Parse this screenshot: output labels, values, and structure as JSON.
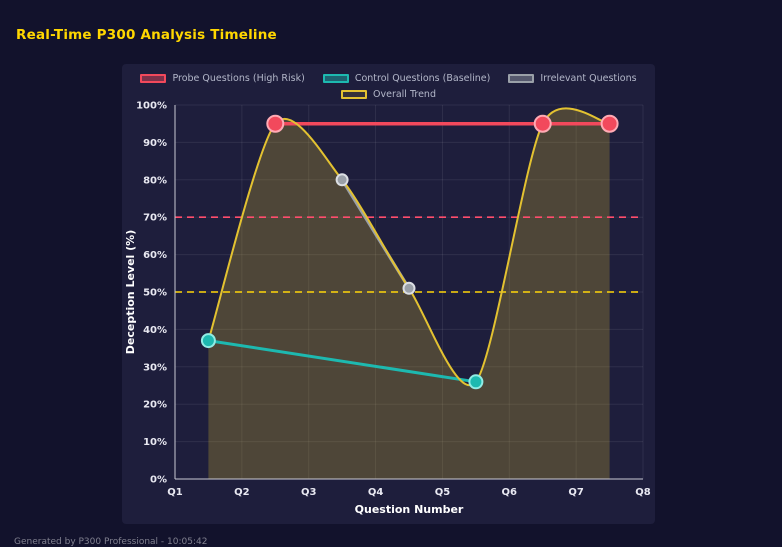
{
  "header": {
    "title": "Real-Time P300 Analysis Timeline"
  },
  "footer": {
    "text": "Generated by P300 Professional - 10:05:42"
  },
  "colors": {
    "page_bg": "#12122c",
    "panel_bg": "#1e1e3c",
    "title": "#ffd700",
    "grid": "rgba(255,255,255,0.08)",
    "axis_line": "#c9c9d4",
    "tick_text": "#e9e9f2",
    "axis_title_text": "#ffffff",
    "legend_text": "#b3b7c9"
  },
  "chart_data": {
    "type": "line",
    "title": "Real-Time P300 Analysis Timeline",
    "xlabel": "Question Number",
    "ylabel": "Deception Level (%)",
    "x_range": [
      1,
      8
    ],
    "y_range": [
      0,
      100
    ],
    "x_tick_values": [
      1,
      2,
      3,
      4,
      5,
      6,
      7,
      8
    ],
    "x_tick_labels": [
      "Q1",
      "Q2",
      "Q3",
      "Q4",
      "Q5",
      "Q6",
      "Q7",
      "Q8"
    ],
    "y_tick_values": [
      0,
      10,
      20,
      30,
      40,
      50,
      60,
      70,
      80,
      90,
      100
    ],
    "y_tick_labels": [
      "0%",
      "10%",
      "20%",
      "30%",
      "40%",
      "50%",
      "60%",
      "70%",
      "80%",
      "90%",
      "100%"
    ],
    "grid": true,
    "legend_position": "top",
    "series": [
      {
        "name": "Probe Questions (High Risk)",
        "color": "#f2495c",
        "marker_stroke": "#ffaab4",
        "swatch_fill": "rgba(242,73,92,0.45)",
        "line_width": 3.5,
        "marker_radius": 8,
        "smooth": false,
        "points": [
          {
            "x": 2.5,
            "y": 95
          },
          {
            "x": 6.5,
            "y": 95
          },
          {
            "x": 7.5,
            "y": 95
          }
        ]
      },
      {
        "name": "Control Questions (Baseline)",
        "color": "#1db9b0",
        "marker_stroke": "#90ece5",
        "swatch_fill": "rgba(29,185,176,0.45)",
        "line_width": 3,
        "marker_radius": 6.5,
        "smooth": false,
        "points": [
          {
            "x": 1.5,
            "y": 37
          },
          {
            "x": 5.5,
            "y": 26
          }
        ]
      },
      {
        "name": "Irrelevant Questions",
        "color": "#9aa0a8",
        "marker_stroke": "#dcdfe4",
        "swatch_fill": "rgba(154,160,168,0.45)",
        "line_width": 3,
        "marker_radius": 5.5,
        "smooth": false,
        "points": [
          {
            "x": 3.5,
            "y": 80
          },
          {
            "x": 4.5,
            "y": 51
          }
        ]
      },
      {
        "name": "Overall Trend",
        "color": "#e3c231",
        "marker_stroke": "#e3c231",
        "swatch_fill": "rgba(227,194,49,0.12)",
        "line_width": 2,
        "marker_radius": 0,
        "smooth": true,
        "area_fill": "rgba(203,177,48,0.28)",
        "points": [
          {
            "x": 1.5,
            "y": 37
          },
          {
            "x": 2.5,
            "y": 95
          },
          {
            "x": 3.5,
            "y": 80
          },
          {
            "x": 4.5,
            "y": 51
          },
          {
            "x": 5.5,
            "y": 26
          },
          {
            "x": 6.5,
            "y": 95
          },
          {
            "x": 7.5,
            "y": 95
          }
        ]
      }
    ],
    "reference_lines": [
      {
        "y": 70,
        "color": "#ff4d6d",
        "style": "dashed"
      },
      {
        "y": 50,
        "color": "#ffd60a",
        "style": "dashed"
      }
    ]
  }
}
